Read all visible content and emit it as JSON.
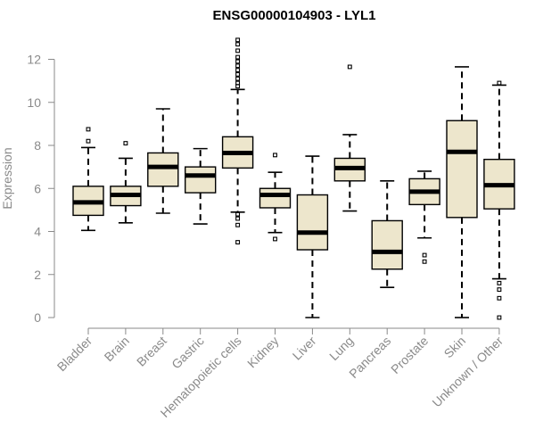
{
  "chart_data": {
    "type": "boxplot",
    "title": "ENSG00000104903 - LYL1",
    "xlabel": "",
    "ylabel": "Expression",
    "ylim": [
      0,
      12
    ],
    "yticks": [
      0,
      2,
      4,
      6,
      8,
      10,
      12
    ],
    "box_fill": "#ede6cc",
    "axis_color": "#8a8a8a",
    "categories": [
      "Bladder",
      "Brain",
      "Breast",
      "Gastric",
      "Hematopoietic cells",
      "Kidney",
      "Liver",
      "Lung",
      "Pancreas",
      "Prostate",
      "Skin",
      "Unknown / Other"
    ],
    "series": [
      {
        "name": "Bladder",
        "whisker_low": 4.05,
        "q1": 4.75,
        "median": 5.35,
        "q3": 6.1,
        "whisker_high": 7.9,
        "outliers": [
          8.2,
          8.75
        ]
      },
      {
        "name": "Brain",
        "whisker_low": 4.4,
        "q1": 5.2,
        "median": 5.7,
        "q3": 6.1,
        "whisker_high": 7.4,
        "outliers": [
          8.1
        ]
      },
      {
        "name": "Breast",
        "whisker_low": 4.85,
        "q1": 6.1,
        "median": 7.0,
        "q3": 7.65,
        "whisker_high": 9.7,
        "outliers": []
      },
      {
        "name": "Gastric",
        "whisker_low": 4.35,
        "q1": 5.8,
        "median": 6.6,
        "q3": 7.0,
        "whisker_high": 7.85,
        "outliers": []
      },
      {
        "name": "Hematopoietic cells",
        "whisker_low": 4.9,
        "q1": 6.95,
        "median": 7.65,
        "q3": 8.4,
        "whisker_high": 10.6,
        "outliers": [
          3.5,
          4.3,
          4.6,
          4.8,
          10.75,
          10.9,
          11.1,
          11.3,
          11.5,
          11.7,
          11.9,
          12.1,
          12.4,
          12.7,
          12.9
        ]
      },
      {
        "name": "Kidney",
        "whisker_low": 3.95,
        "q1": 5.1,
        "median": 5.7,
        "q3": 6.0,
        "whisker_high": 6.75,
        "outliers": [
          3.65,
          7.55
        ]
      },
      {
        "name": "Liver",
        "whisker_low": 0.0,
        "q1": 3.15,
        "median": 3.95,
        "q3": 5.7,
        "whisker_high": 7.5,
        "outliers": []
      },
      {
        "name": "Lung",
        "whisker_low": 4.95,
        "q1": 6.35,
        "median": 6.95,
        "q3": 7.4,
        "whisker_high": 8.5,
        "outliers": [
          11.65
        ]
      },
      {
        "name": "Pancreas",
        "whisker_low": 1.4,
        "q1": 2.25,
        "median": 3.05,
        "q3": 4.5,
        "whisker_high": 6.35,
        "outliers": []
      },
      {
        "name": "Prostate",
        "whisker_low": 3.7,
        "q1": 5.25,
        "median": 5.85,
        "q3": 6.45,
        "whisker_high": 6.8,
        "outliers": [
          2.6,
          2.9
        ]
      },
      {
        "name": "Skin",
        "whisker_low": 0.0,
        "q1": 4.65,
        "median": 7.7,
        "q3": 9.15,
        "whisker_high": 11.65,
        "outliers": []
      },
      {
        "name": "Unknown / Other",
        "whisker_low": 1.8,
        "q1": 5.05,
        "median": 6.15,
        "q3": 7.35,
        "whisker_high": 10.8,
        "outliers": [
          0.0,
          0.9,
          1.3,
          1.6,
          10.9
        ]
      }
    ]
  }
}
